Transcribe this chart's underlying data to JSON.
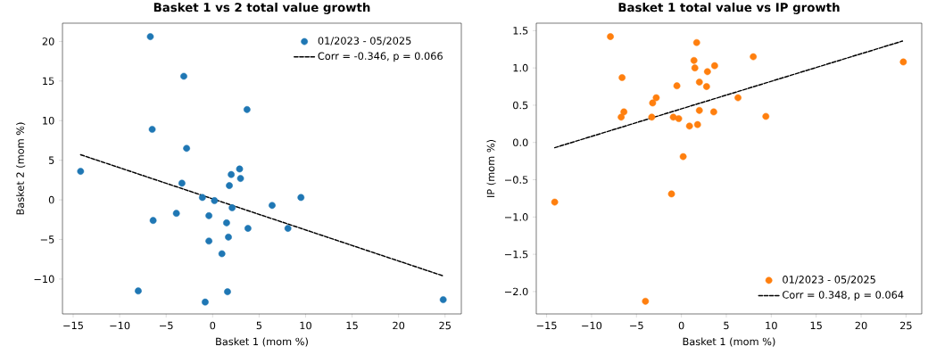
{
  "chart_data": [
    {
      "type": "scatter",
      "title": "Basket 1 vs 2 total value growth",
      "xlabel": "Basket 1 (mom %)",
      "ylabel": "Basket 2 (mom %)",
      "legend": "top right",
      "xlim": [
        -16.15,
        26.75
      ],
      "ylim": [
        -14.4,
        22.3
      ],
      "xticks": [
        {
          "value": -15,
          "label": "−15"
        },
        {
          "value": -10,
          "label": "−10"
        },
        {
          "value": -5,
          "label": "−5"
        },
        0,
        5,
        10,
        15,
        20,
        25
      ],
      "yticks": [
        {
          "value": -10,
          "label": "−10"
        },
        {
          "value": -5,
          "label": "−5"
        },
        0,
        5,
        10,
        15,
        20
      ],
      "series": [
        {
          "name": "01/2023 - 05/2025",
          "color": "#1f77b4",
          "marker": "circle",
          "x": [
            -14.2,
            -6.7,
            -3.1,
            3.7,
            -6.5,
            -2.8,
            2.9,
            2.0,
            3.0,
            -3.3,
            1.8,
            -1.1,
            0.2,
            9.5,
            2.1,
            6.4,
            -3.9,
            -6.4,
            -0.4,
            1.5,
            3.8,
            8.1,
            1.7,
            -0.4,
            1.0,
            -8.0,
            1.6,
            -0.8,
            24.8
          ],
          "values": [
            3.6,
            20.6,
            15.6,
            11.4,
            8.9,
            6.5,
            3.9,
            3.2,
            2.7,
            2.1,
            1.8,
            0.3,
            -0.1,
            0.3,
            -1.0,
            -0.7,
            -1.7,
            -2.6,
            -2.0,
            -2.9,
            -3.6,
            -3.6,
            -4.7,
            -5.2,
            -6.8,
            -11.5,
            -11.6,
            -12.9,
            -12.6
          ]
        },
        {
          "type": "line",
          "name": "Corr = -0.346, p = 0.066",
          "color": "#000000",
          "line_style": "dashed",
          "marker": "none",
          "x": [
            -14.2,
            24.8
          ],
          "values": [
            5.7,
            -9.6
          ]
        }
      ]
    },
    {
      "type": "scatter",
      "title": "Basket 1 total value vs IP growth",
      "xlabel": "Basket 1 (mom %)",
      "ylabel": "IP (mom %)",
      "legend": "bottom right",
      "xlim": [
        -16.15,
        26.75
      ],
      "ylim": [
        -2.3,
        1.6
      ],
      "xticks": [
        {
          "value": -15,
          "label": "−15"
        },
        {
          "value": -10,
          "label": "−10"
        },
        {
          "value": -5,
          "label": "−5"
        },
        0,
        5,
        10,
        15,
        20,
        25
      ],
      "yticks": [
        {
          "value": -2,
          "label": "−2.0"
        },
        {
          "value": -1.5,
          "label": "−1.5"
        },
        {
          "value": -1,
          "label": "−1.0"
        },
        {
          "value": -0.5,
          "label": "−0.5"
        },
        {
          "value": 0,
          "label": "0.0"
        },
        0.5,
        {
          "value": 1,
          "label": "1.0"
        },
        1.5
      ],
      "series": [
        {
          "name": "01/2023 - 05/2025",
          "color": "#ff7f0e",
          "marker": "circle",
          "x": [
            -14.1,
            -7.9,
            -6.6,
            -6.7,
            -6.4,
            -3.3,
            -3.2,
            -2.8,
            -4.0,
            -0.5,
            -0.9,
            -0.3,
            -1.1,
            0.2,
            0.9,
            1.4,
            1.5,
            1.7,
            1.8,
            2.0,
            2.0,
            2.8,
            2.9,
            3.7,
            3.6,
            6.3,
            8.0,
            9.4,
            24.7
          ],
          "values": [
            -0.8,
            1.42,
            0.87,
            0.34,
            0.41,
            0.34,
            0.53,
            0.6,
            -2.13,
            0.76,
            0.34,
            0.32,
            -0.69,
            -0.19,
            0.22,
            1.1,
            1.0,
            1.34,
            0.24,
            0.43,
            0.81,
            0.75,
            0.95,
            1.03,
            0.41,
            0.6,
            1.15,
            0.35,
            1.08
          ]
        },
        {
          "type": "line",
          "name": "Corr = 0.348, p = 0.064",
          "color": "#000000",
          "line_style": "dashed",
          "marker": "none",
          "x": [
            -14.1,
            24.6
          ],
          "values": [
            -0.07,
            1.36
          ]
        }
      ]
    }
  ]
}
